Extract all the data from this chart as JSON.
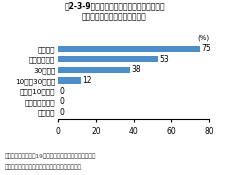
{
  "title_line1": "図2-3-9　地方公共団体における環境教育に",
  "title_line2": "関する方针、計画等の作成状況",
  "categories": [
    "都道府県",
    "政令指定都市",
    "30万以上",
    "10万～30万未満",
    "５万～10万未満",
    "２万～５万未満",
    "２万未満"
  ],
  "values": [
    75,
    53,
    38,
    12,
    0,
    0,
    0
  ],
  "bar_color": "#4d8ec9",
  "xlim": [
    0,
    80
  ],
  "xticks": [
    0,
    20,
    40,
    60,
    80
  ],
  "footnote_line1": "資料：環境省「平成19年度地方公共団体における環境教",
  "footnote_line2": "育に関する施策等の取組達成状況調査」より作成"
}
